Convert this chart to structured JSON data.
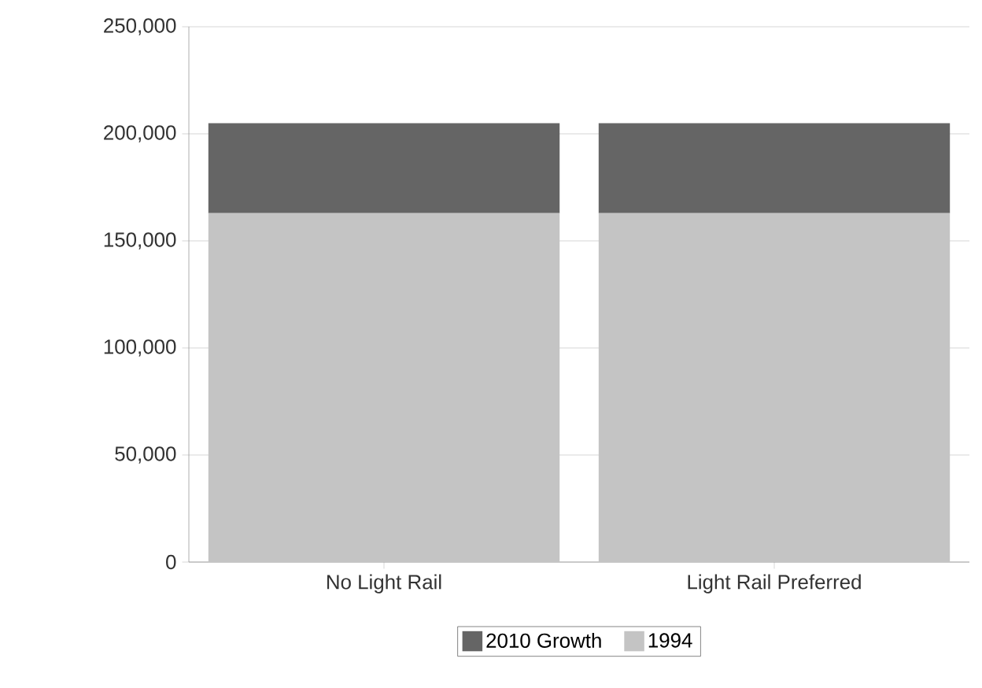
{
  "chart_data": {
    "type": "bar",
    "stacked": true,
    "categories": [
      "No Light Rail",
      "Light Rail Preferred"
    ],
    "series": [
      {
        "name": "1994",
        "color": "#c4c4c4",
        "values": [
          163000,
          163000
        ]
      },
      {
        "name": "2010 Growth",
        "color": "#656565",
        "values": [
          42000,
          42000
        ]
      }
    ],
    "ylim": [
      0,
      250000
    ],
    "yticks": [
      {
        "value": 0,
        "label": "0"
      },
      {
        "value": 50000,
        "label": "50,000"
      },
      {
        "value": 100000,
        "label": "100,000"
      },
      {
        "value": 150000,
        "label": "150,000"
      },
      {
        "value": 200000,
        "label": "200,000"
      },
      {
        "value": 250000,
        "label": "250,000"
      }
    ],
    "grid": "y",
    "legend": "bottom"
  }
}
